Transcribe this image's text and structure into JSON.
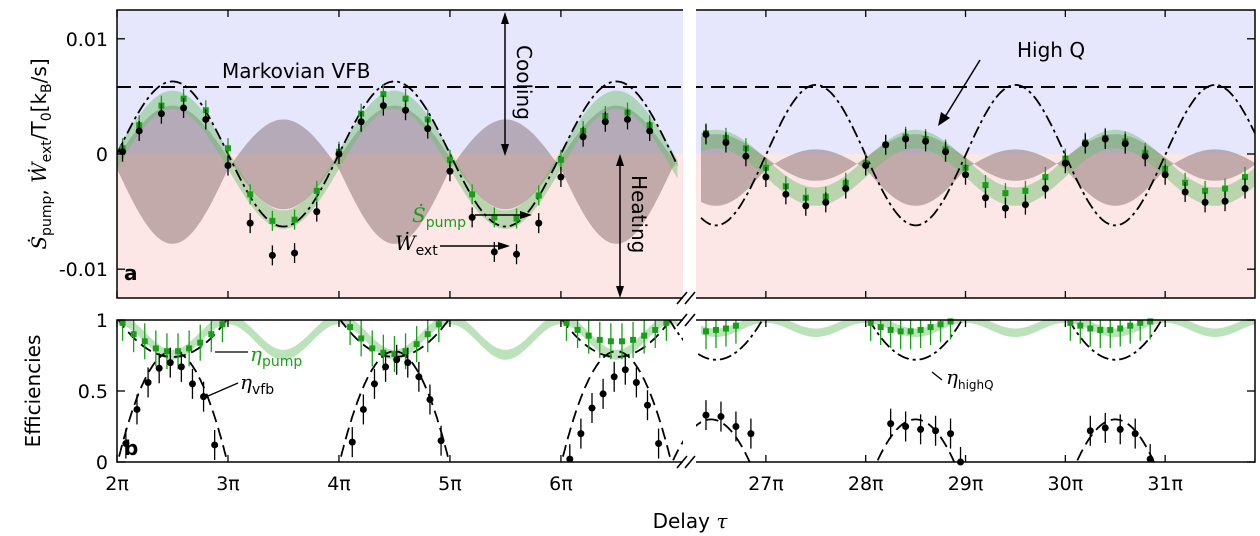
{
  "chart_data": [
    {
      "panel_label": "a",
      "type": "line",
      "ylabel": "Ṡpump, Ẇext/T0[kB/s]",
      "ylabel_parts": {
        "s": "Ṡ",
        "s_sub": "pump",
        "w": "Ẇ",
        "w_sub": "ext",
        "rest": "/T",
        "rest_sub": "0",
        "unit": "[k",
        "unit_sub": "B",
        "unit_end": "/s]"
      },
      "ylim": [
        -0.0125,
        0.0125
      ],
      "yticks": [
        {
          "value": 0.01,
          "label": "0.01"
        },
        {
          "value": 0,
          "label": "0"
        },
        {
          "value": -0.01,
          "label": "-0.01"
        }
      ],
      "regions": [
        {
          "label": "Cooling",
          "from": 0,
          "to": 0.0125,
          "color": "#e6e6fc"
        },
        {
          "label": "Heating",
          "from": -0.0125,
          "to": 0,
          "color": "#fce6e6"
        }
      ],
      "reference_line": {
        "label": "Markovian VFB",
        "value": 0.006
      },
      "annotations": {
        "high_q": "High Q",
        "s_pump": {
          "main": "Ṡ",
          "sub": "pump"
        },
        "w_ext": {
          "main": "Ẇ",
          "sub": "ext"
        }
      },
      "series": [
        {
          "name": "Ṡpump",
          "color": "#1a9e1a",
          "x": [
            2.05,
            2.2,
            2.4,
            2.6,
            2.8,
            3.0,
            3.2,
            3.4,
            3.6,
            3.8,
            4.0,
            4.2,
            4.4,
            4.6,
            4.8,
            5.0,
            5.2,
            5.4,
            5.6,
            5.8,
            6.0,
            6.2,
            6.4,
            6.6,
            6.8,
            26.4,
            26.6,
            26.8,
            27.0,
            27.2,
            27.4,
            27.6,
            27.8,
            28.0,
            28.2,
            28.4,
            28.6,
            28.8,
            29.0,
            29.2,
            29.4,
            29.6,
            29.8,
            30.0,
            30.2,
            30.4,
            30.6,
            30.8,
            31.0,
            31.2,
            31.4,
            31.6,
            31.8
          ],
          "y": [
            0.0005,
            0.0025,
            0.0042,
            0.0048,
            0.0038,
            0.0005,
            -0.0035,
            -0.0058,
            -0.0057,
            -0.0032,
            0.0002,
            0.0035,
            0.0052,
            0.0048,
            0.003,
            -0.0005,
            -0.0035,
            -0.0055,
            -0.0056,
            -0.0036,
            -0.0005,
            0.002,
            0.0033,
            0.0036,
            0.0025,
            0.0018,
            0.0014,
            0.0005,
            -0.0012,
            -0.0028,
            -0.0038,
            -0.0037,
            -0.0025,
            -0.0008,
            0.0008,
            0.0015,
            0.0013,
            0.0004,
            -0.0012,
            -0.0027,
            -0.0034,
            -0.0032,
            -0.002,
            -0.0004,
            0.001,
            0.0014,
            0.0011,
            0.0001,
            -0.0013,
            -0.0025,
            -0.0032,
            -0.003,
            -0.002
          ]
        },
        {
          "name": "Ẇext",
          "color": "#000000",
          "x": [
            2.05,
            2.2,
            2.4,
            2.6,
            2.8,
            3.0,
            3.2,
            3.4,
            3.6,
            3.8,
            4.0,
            4.2,
            4.4,
            4.6,
            4.8,
            5.0,
            5.2,
            5.4,
            5.6,
            5.8,
            6.0,
            6.2,
            6.4,
            6.6,
            6.8,
            26.4,
            26.6,
            26.8,
            27.0,
            27.2,
            27.4,
            27.6,
            27.8,
            28.0,
            28.2,
            28.4,
            28.6,
            28.8,
            29.0,
            29.2,
            29.4,
            29.6,
            29.8,
            30.0,
            30.2,
            30.4,
            30.6,
            30.8,
            31.0,
            31.2,
            31.4,
            31.6,
            31.8
          ],
          "y": [
            0.0002,
            0.002,
            0.0035,
            0.004,
            0.003,
            -0.001,
            -0.006,
            -0.0088,
            -0.0086,
            -0.005,
            0.0,
            0.0028,
            0.0042,
            0.0038,
            0.0022,
            -0.0015,
            -0.0055,
            -0.0085,
            -0.0087,
            -0.006,
            -0.002,
            0.0015,
            0.0028,
            0.003,
            0.002,
            0.0017,
            0.001,
            -0.0002,
            -0.002,
            -0.0035,
            -0.0045,
            -0.0042,
            -0.003,
            -0.001,
            0.0008,
            0.0013,
            0.0011,
            0.0002,
            -0.0018,
            -0.0038,
            -0.0047,
            -0.0044,
            -0.003,
            -0.0008,
            0.0009,
            0.0013,
            0.0009,
            -0.0002,
            -0.0018,
            -0.0033,
            -0.0042,
            -0.0041,
            -0.003
          ]
        }
      ]
    },
    {
      "panel_label": "b",
      "type": "line",
      "ylabel": "Efficiencies",
      "xlabel": "Delay τ",
      "xlabel_parts": {
        "text": "Delay",
        "symbol": "τ"
      },
      "ylim": [
        0,
        1
      ],
      "yticks": [
        {
          "value": 1,
          "label": "1"
        },
        {
          "value": 0.5,
          "label": "0.5"
        },
        {
          "value": 0,
          "label": "0"
        }
      ],
      "xaxis": {
        "units": "π",
        "segments": [
          [
            2,
            7.1
          ],
          [
            26.3,
            31.9
          ]
        ],
        "ticks": [
          {
            "value": 2,
            "label": "2π"
          },
          {
            "value": 3,
            "label": "3π"
          },
          {
            "value": 4,
            "label": "4π"
          },
          {
            "value": 5,
            "label": "5π"
          },
          {
            "value": 6,
            "label": "6π"
          },
          {
            "value": 27,
            "label": "27π"
          },
          {
            "value": 28,
            "label": "28π"
          },
          {
            "value": 29,
            "label": "29π"
          },
          {
            "value": 30,
            "label": "30π"
          },
          {
            "value": 31,
            "label": "31π"
          }
        ]
      },
      "annotations": {
        "eta_pump": {
          "main": "η",
          "sub": "pump"
        },
        "eta_vfb": {
          "main": "η",
          "sub": "vfb"
        },
        "eta_highq": {
          "main": "η",
          "sub": "highQ"
        }
      },
      "series": [
        {
          "name": "ηpump",
          "color": "#1a9e1a",
          "x": [
            2.05,
            2.15,
            2.25,
            2.35,
            2.45,
            2.55,
            2.65,
            2.75,
            2.85,
            2.95,
            4.1,
            4.2,
            4.3,
            4.4,
            4.5,
            4.6,
            4.7,
            4.8,
            4.9,
            6.05,
            6.15,
            6.25,
            6.35,
            6.45,
            6.55,
            6.65,
            6.75,
            6.85,
            6.95,
            26.4,
            26.5,
            26.6,
            26.7,
            28.05,
            28.15,
            28.25,
            28.35,
            28.45,
            28.55,
            28.65,
            28.75,
            28.85,
            30.05,
            30.15,
            30.25,
            30.35,
            30.45,
            30.55,
            30.65,
            30.75,
            30.85
          ],
          "y": [
            0.98,
            0.9,
            0.85,
            0.8,
            0.78,
            0.78,
            0.8,
            0.84,
            0.9,
            0.97,
            0.95,
            0.87,
            0.8,
            0.77,
            0.76,
            0.78,
            0.83,
            0.9,
            0.97,
            0.98,
            0.93,
            0.89,
            0.86,
            0.85,
            0.85,
            0.86,
            0.89,
            0.93,
            0.98,
            0.92,
            0.93,
            0.94,
            0.96,
            0.98,
            0.95,
            0.93,
            0.92,
            0.92,
            0.93,
            0.95,
            0.97,
            0.99,
            0.98,
            0.96,
            0.94,
            0.93,
            0.93,
            0.94,
            0.96,
            0.98,
            0.99
          ]
        },
        {
          "name": "ηvfb",
          "color": "#000000",
          "x": [
            2.08,
            2.18,
            2.28,
            2.38,
            2.48,
            2.58,
            2.68,
            2.78,
            2.88,
            4.12,
            4.22,
            4.32,
            4.42,
            4.52,
            4.62,
            4.72,
            4.82,
            4.92,
            6.08,
            6.18,
            6.28,
            6.38,
            6.48,
            6.58,
            6.68,
            6.78,
            6.88,
            26.4,
            26.55,
            26.7,
            26.85,
            28.25,
            28.4,
            28.55,
            28.7,
            28.85,
            28.95,
            30.25,
            30.4,
            30.55,
            30.7,
            30.85
          ],
          "y": [
            0.13,
            0.37,
            0.56,
            0.66,
            0.7,
            0.67,
            0.55,
            0.46,
            0.12,
            0.14,
            0.37,
            0.55,
            0.67,
            0.72,
            0.7,
            0.6,
            0.44,
            0.15,
            0.02,
            0.2,
            0.38,
            0.48,
            0.6,
            0.65,
            0.56,
            0.4,
            0.13,
            0.33,
            0.32,
            0.25,
            0.2,
            0.27,
            0.25,
            0.23,
            0.22,
            0.2,
            0.0,
            0.22,
            0.24,
            0.23,
            0.2,
            0.02
          ]
        }
      ]
    }
  ]
}
